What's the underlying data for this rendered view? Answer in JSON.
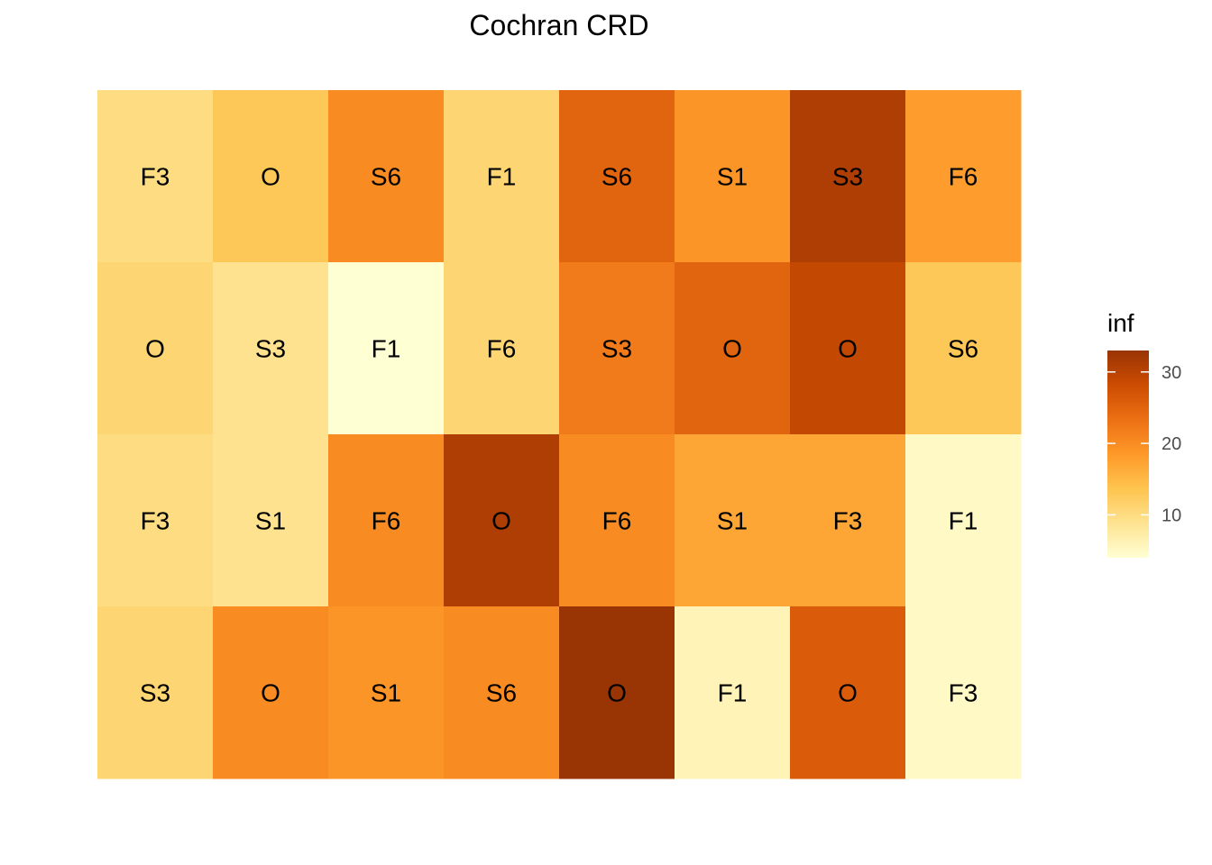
{
  "chart_data": {
    "type": "heatmap",
    "title": "Cochran CRD",
    "xlabel": "",
    "ylabel": "",
    "n_cols": 8,
    "n_rows": 4,
    "rows": [
      {
        "labels": [
          "F3",
          "O",
          "S6",
          "F1",
          "S6",
          "S1",
          "S3",
          "F6"
        ],
        "values": [
          10,
          13,
          20,
          11,
          25,
          19,
          31,
          18
        ]
      },
      {
        "labels": [
          "O",
          "S3",
          "F1",
          "F6",
          "S3",
          "O",
          "O",
          "S6"
        ],
        "values": [
          11,
          9,
          4,
          11,
          22,
          25,
          29,
          13
        ]
      },
      {
        "labels": [
          "F3",
          "S1",
          "F6",
          "O",
          "F6",
          "S1",
          "F3",
          "F1"
        ],
        "values": [
          10,
          9,
          20,
          31,
          20,
          17,
          17,
          5
        ]
      },
      {
        "labels": [
          "S3",
          "O",
          "S1",
          "S6",
          "O",
          "F1",
          "O",
          "F3"
        ],
        "values": [
          11,
          20,
          19,
          20,
          33,
          6,
          26,
          5
        ]
      }
    ],
    "legend": {
      "title": "inf",
      "ticks": [
        10,
        20,
        30
      ],
      "range": [
        4,
        33
      ],
      "position": "right"
    },
    "colors": {
      "scale": [
        "#ffffd4",
        "#fee391",
        "#fec44f",
        "#fe9929",
        "#ec7014",
        "#cc4c02",
        "#993404"
      ]
    }
  }
}
